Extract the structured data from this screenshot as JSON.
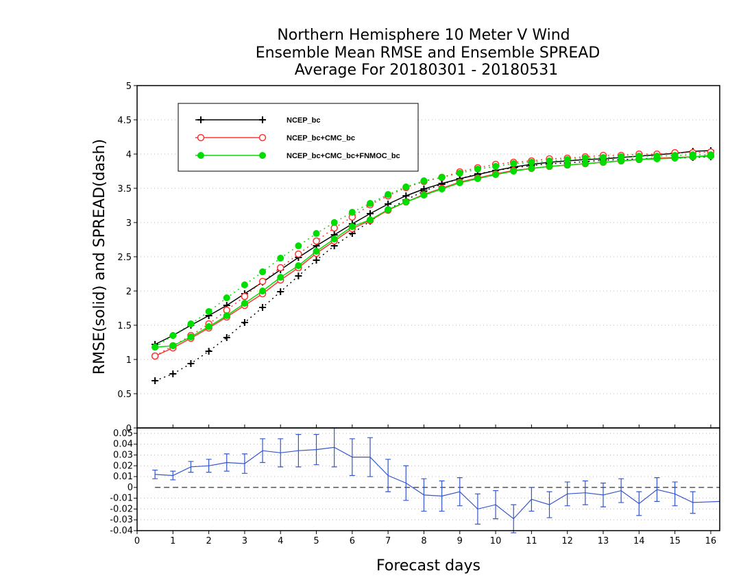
{
  "chart_data": [
    {
      "type": "line",
      "title": [
        "Northern Hemisphere 10 Meter V Wind",
        "Ensemble Mean RMSE and Ensemble SPREAD",
        "Average For 20180301 - 20180531"
      ],
      "ylabel": "RMSE(solid) and SPREAD(dash)",
      "xlim": [
        0,
        16.25
      ],
      "ylim": [
        0,
        5
      ],
      "yticks": [
        "0",
        "0.5",
        "1",
        "1.5",
        "2",
        "2.5",
        "3",
        "3.5",
        "4",
        "4.5",
        "5"
      ],
      "grid": true,
      "legend_position": "top-left",
      "x": [
        0.5,
        1,
        1.5,
        2,
        2.5,
        3,
        3.5,
        4,
        4.5,
        5,
        5.5,
        6,
        6.5,
        7,
        7.5,
        8,
        8.5,
        9,
        9.5,
        10,
        10.5,
        11,
        11.5,
        12,
        12.5,
        13,
        13.5,
        14,
        14.5,
        15,
        15.5,
        16
      ],
      "series": [
        {
          "name": "NCEP_bc",
          "color": "#000000",
          "marker": "plus",
          "rmse": [
            1.22,
            1.35,
            1.5,
            1.64,
            1.79,
            1.96,
            2.13,
            2.31,
            2.49,
            2.66,
            2.82,
            2.98,
            3.13,
            3.27,
            3.39,
            3.49,
            3.57,
            3.64,
            3.7,
            3.76,
            3.81,
            3.85,
            3.88,
            3.9,
            3.92,
            3.93,
            3.95,
            3.97,
            3.99,
            4.01,
            4.04,
            4.05
          ],
          "spread": [
            0.69,
            0.79,
            0.94,
            1.12,
            1.32,
            1.54,
            1.76,
            1.99,
            2.22,
            2.45,
            2.66,
            2.84,
            3.02,
            3.19,
            3.33,
            3.46,
            3.56,
            3.64,
            3.71,
            3.76,
            3.8,
            3.83,
            3.86,
            3.87,
            3.89,
            3.91,
            3.92,
            3.93,
            3.94,
            3.94,
            3.95,
            3.96
          ]
        },
        {
          "name": "NCEP_bc+CMC_bc",
          "color": "#ff3333",
          "marker": "open-circle",
          "rmse": [
            1.05,
            1.17,
            1.31,
            1.46,
            1.62,
            1.79,
            1.96,
            2.16,
            2.34,
            2.55,
            2.73,
            2.91,
            3.03,
            3.18,
            3.3,
            3.41,
            3.5,
            3.59,
            3.65,
            3.71,
            3.76,
            3.79,
            3.82,
            3.84,
            3.86,
            3.88,
            3.9,
            3.92,
            3.94,
            3.95,
            3.96,
            3.98
          ],
          "spread": [
            1.05,
            1.2,
            1.35,
            1.52,
            1.72,
            1.92,
            2.14,
            2.34,
            2.54,
            2.73,
            2.92,
            3.08,
            3.26,
            3.39,
            3.51,
            3.6,
            3.66,
            3.74,
            3.8,
            3.85,
            3.88,
            3.9,
            3.93,
            3.94,
            3.96,
            3.98,
            3.98,
            4,
            4,
            4.02,
            4.02,
            4.03
          ]
        },
        {
          "name": "NCEP_bc+CMC_bc+FNMOC_bc",
          "color": "#00dd00",
          "marker": "filled-circle",
          "rmse": [
            1.18,
            1.2,
            1.33,
            1.48,
            1.64,
            1.82,
            2,
            2.2,
            2.37,
            2.58,
            2.76,
            2.94,
            3.04,
            3.19,
            3.3,
            3.4,
            3.49,
            3.58,
            3.64,
            3.7,
            3.75,
            3.79,
            3.82,
            3.84,
            3.86,
            3.88,
            3.9,
            3.92,
            3.93,
            3.94,
            3.96,
            3.97
          ],
          "spread": [
            1.18,
            1.35,
            1.52,
            1.7,
            1.9,
            2.09,
            2.28,
            2.48,
            2.66,
            2.84,
            3,
            3.15,
            3.28,
            3.41,
            3.52,
            3.61,
            3.66,
            3.72,
            3.78,
            3.82,
            3.86,
            3.88,
            3.9,
            3.92,
            3.94,
            3.95,
            3.96,
            3.97,
            3.97,
            3.98,
            3.99,
            3.99
          ]
        }
      ]
    },
    {
      "type": "line",
      "xlabel": "Forecast days",
      "xlim": [
        0,
        16.25
      ],
      "xticks": [
        "0",
        "1",
        "2",
        "3",
        "4",
        "5",
        "6",
        "7",
        "8",
        "9",
        "10",
        "11",
        "12",
        "13",
        "14",
        "15",
        "16"
      ],
      "ylim": [
        -0.04,
        0.055
      ],
      "yticks": [
        "-0.04",
        "-0.03",
        "-0.02",
        "-0.01",
        "0",
        "0.01",
        "0.02",
        "0.03",
        "0.04",
        "0.05"
      ],
      "grid": true,
      "zero_line": true,
      "series": [
        {
          "color": "#3355cc",
          "error_bars": true,
          "x": [
            0.5,
            1,
            1.5,
            2,
            2.5,
            3,
            3.5,
            4,
            4.5,
            5,
            5.5,
            6,
            6.5,
            7,
            7.5,
            8,
            8.5,
            9,
            9.5,
            10,
            10.5,
            11,
            11.5,
            12,
            12.5,
            13,
            13.5,
            14,
            14.5,
            15,
            15.5,
            16.25
          ],
          "values": [
            0.012,
            0.011,
            0.019,
            0.02,
            0.023,
            0.022,
            0.034,
            0.032,
            0.034,
            0.035,
            0.037,
            0.028,
            0.028,
            0.011,
            0.004,
            -0.007,
            -0.008,
            -0.004,
            -0.02,
            -0.016,
            -0.029,
            -0.011,
            -0.016,
            -0.006,
            -0.005,
            -0.007,
            -0.003,
            -0.015,
            -0.002,
            -0.006,
            -0.014,
            -0.013
          ],
          "err": [
            0.004,
            0.004,
            0.005,
            0.006,
            0.008,
            0.009,
            0.011,
            0.013,
            0.015,
            0.014,
            0.018,
            0.017,
            0.018,
            0.015,
            0.016,
            0.015,
            0.014,
            0.013,
            0.014,
            0.013,
            0.013,
            0.011,
            0.012,
            0.011,
            0.011,
            0.011,
            0.011,
            0.011,
            0.011,
            0.011,
            0.01,
            0
          ]
        }
      ]
    }
  ]
}
